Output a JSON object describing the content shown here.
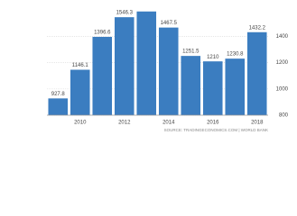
{
  "chart_data": {
    "type": "bar",
    "categories": [
      null,
      "2010",
      null,
      "2012",
      null,
      "2014",
      null,
      "2016",
      null,
      "2018"
    ],
    "values": [
      927.8,
      1146.1,
      1396.6,
      1546.3,
      1590,
      1467.5,
      1251.5,
      1210,
      1230.8,
      1432.2
    ],
    "value_labels": [
      "927.8",
      "1146.1",
      "1396.6",
      "1546.3",
      null,
      "1467.5",
      "1251.5",
      "1210",
      "1230.8",
      "1432.2"
    ],
    "color": "#3b7dc0",
    "ylim": [
      800,
      1650
    ],
    "yticks": [
      800,
      1000,
      1200,
      1400
    ],
    "grid": true,
    "source": "SOURCE: TRADINGECONOMICS.COM | WORLD BANK"
  }
}
